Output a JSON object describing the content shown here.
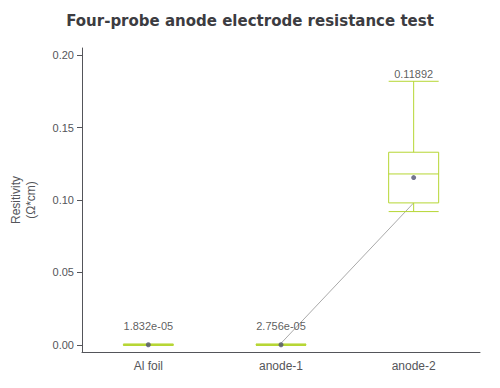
{
  "chart_data": {
    "type": "boxplot",
    "title": "Four-probe anode electrode resistance test",
    "ylabel": "Resitivity\n(Ω*cm)",
    "categories": [
      "Al foil",
      "anode-1",
      "anode-2"
    ],
    "boxes": [
      {
        "whisker_low": -0.0005,
        "q1": -0.0003,
        "median": 0.0,
        "q3": 0.0003,
        "whisker_high": 0.0005
      },
      {
        "whisker_low": -0.0005,
        "q1": -0.0003,
        "median": 0.0,
        "q3": 0.0003,
        "whisker_high": 0.0005
      },
      {
        "whisker_low": 0.092,
        "q1": 0.098,
        "median": 0.118,
        "q3": 0.133,
        "whisker_high": 0.182
      }
    ],
    "means": [
      0.0,
      0.0,
      0.1155
    ],
    "ylim": [
      -0.005,
      0.205
    ],
    "yticks": [
      {
        "value": 0.0,
        "label": "0.00"
      },
      {
        "value": 0.05,
        "label": "0.05"
      },
      {
        "value": 0.1,
        "label": "0.10"
      },
      {
        "value": 0.15,
        "label": "0.15"
      },
      {
        "value": 0.2,
        "label": "0.20"
      }
    ],
    "grid": false,
    "annotations": [
      {
        "text": "1.832e-05",
        "category": "Al foil",
        "y": 0.008
      },
      {
        "text": "2.756e-05",
        "category": "anode-1",
        "y": 0.008
      },
      {
        "text": "0.11892",
        "category": "anode-2",
        "y": 0.182
      }
    ],
    "connector": {
      "from": {
        "category": "anode-1",
        "y": 0.001
      },
      "to": {
        "category": "anode-2",
        "y": 0.098
      },
      "color": "#aaaaaa"
    }
  }
}
